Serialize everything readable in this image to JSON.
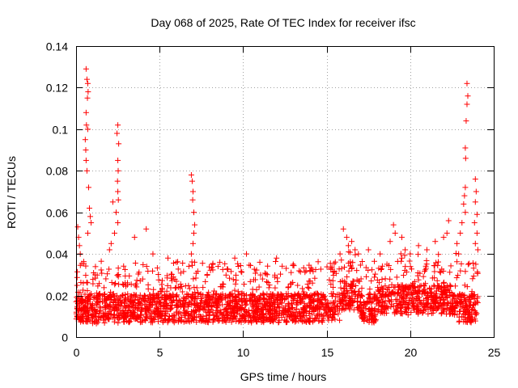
{
  "chart_data": {
    "type": "scatter",
    "title": "Day 068 of 2025, Rate Of TEC Index for receiver ifsc",
    "xlabel": "GPS time / hours",
    "ylabel": "ROTI / TECUs",
    "xlim": [
      0,
      25
    ],
    "ylim": [
      0,
      0.14
    ],
    "xticks": [
      "0",
      "5",
      "10",
      "15",
      "20",
      "25"
    ],
    "yticks": [
      "0",
      "0.02",
      "0.04",
      "0.06",
      "0.08",
      "0.1",
      "0.12",
      "0.14"
    ],
    "grid": true,
    "marker": "+",
    "color": "#ff0000",
    "series": [
      {
        "name": "ROTI",
        "note": "Dense cloud of points between x=0 and x=24; baseline ROTI ~0.005-0.03 TECU/s with scattered higher spikes",
        "points": [
          [
            0.6,
            0.129
          ],
          [
            0.65,
            0.124
          ],
          [
            0.7,
            0.122
          ],
          [
            0.72,
            0.118
          ],
          [
            0.68,
            0.115
          ],
          [
            0.6,
            0.108
          ],
          [
            0.62,
            0.102
          ],
          [
            0.7,
            0.1
          ],
          [
            0.55,
            0.095
          ],
          [
            0.58,
            0.09
          ],
          [
            0.6,
            0.085
          ],
          [
            0.65,
            0.08
          ],
          [
            0.75,
            0.072
          ],
          [
            0.8,
            0.062
          ],
          [
            0.85,
            0.058
          ],
          [
            0.9,
            0.055
          ],
          [
            0.7,
            0.05
          ],
          [
            0.1,
            0.053
          ],
          [
            0.15,
            0.048
          ],
          [
            0.2,
            0.044
          ],
          [
            0.25,
            0.04
          ],
          [
            2.5,
            0.102
          ],
          [
            2.45,
            0.098
          ],
          [
            2.55,
            0.093
          ],
          [
            2.5,
            0.085
          ],
          [
            2.52,
            0.08
          ],
          [
            2.48,
            0.075
          ],
          [
            2.5,
            0.07
          ],
          [
            2.53,
            0.066
          ],
          [
            2.4,
            0.06
          ],
          [
            2.5,
            0.055
          ],
          [
            2.2,
            0.065
          ],
          [
            2.3,
            0.05
          ],
          [
            2.1,
            0.045
          ],
          [
            2.0,
            0.042
          ],
          [
            6.9,
            0.078
          ],
          [
            6.95,
            0.075
          ],
          [
            7.0,
            0.07
          ],
          [
            6.98,
            0.066
          ],
          [
            7.05,
            0.06
          ],
          [
            7.1,
            0.054
          ],
          [
            7.05,
            0.05
          ],
          [
            7.0,
            0.045
          ],
          [
            6.9,
            0.04
          ],
          [
            3.5,
            0.048
          ],
          [
            4.2,
            0.052
          ],
          [
            4.6,
            0.04
          ],
          [
            5.5,
            0.038
          ],
          [
            6.0,
            0.036
          ],
          [
            8.5,
            0.034
          ],
          [
            9.5,
            0.038
          ],
          [
            10.2,
            0.04
          ],
          [
            11.0,
            0.036
          ],
          [
            12.0,
            0.038
          ],
          [
            13.0,
            0.035
          ],
          [
            14.0,
            0.032
          ],
          [
            16.0,
            0.052
          ],
          [
            16.2,
            0.048
          ],
          [
            16.5,
            0.046
          ],
          [
            16.3,
            0.044
          ],
          [
            16.7,
            0.042
          ],
          [
            15.8,
            0.04
          ],
          [
            16.9,
            0.04
          ],
          [
            17.5,
            0.042
          ],
          [
            18.2,
            0.04
          ],
          [
            18.8,
            0.046
          ],
          [
            19.0,
            0.054
          ],
          [
            19.1,
            0.05
          ],
          [
            19.5,
            0.048
          ],
          [
            19.7,
            0.042
          ],
          [
            20.0,
            0.04
          ],
          [
            20.5,
            0.044
          ],
          [
            21.0,
            0.042
          ],
          [
            21.5,
            0.046
          ],
          [
            22.0,
            0.048
          ],
          [
            22.2,
            0.05
          ],
          [
            22.3,
            0.056
          ],
          [
            23.4,
            0.122
          ],
          [
            23.45,
            0.116
          ],
          [
            23.4,
            0.112
          ],
          [
            23.35,
            0.104
          ],
          [
            23.3,
            0.091
          ],
          [
            23.32,
            0.086
          ],
          [
            23.3,
            0.072
          ],
          [
            23.25,
            0.068
          ],
          [
            23.2,
            0.064
          ],
          [
            23.3,
            0.06
          ],
          [
            23.1,
            0.055
          ],
          [
            23.0,
            0.05
          ],
          [
            23.9,
            0.076
          ],
          [
            23.95,
            0.07
          ],
          [
            23.9,
            0.065
          ],
          [
            24.0,
            0.059
          ],
          [
            23.85,
            0.055
          ],
          [
            24.0,
            0.05
          ],
          [
            23.9,
            0.045
          ],
          [
            24.05,
            0.042
          ],
          [
            22.8,
            0.045
          ],
          [
            22.9,
            0.04
          ]
        ]
      }
    ]
  }
}
